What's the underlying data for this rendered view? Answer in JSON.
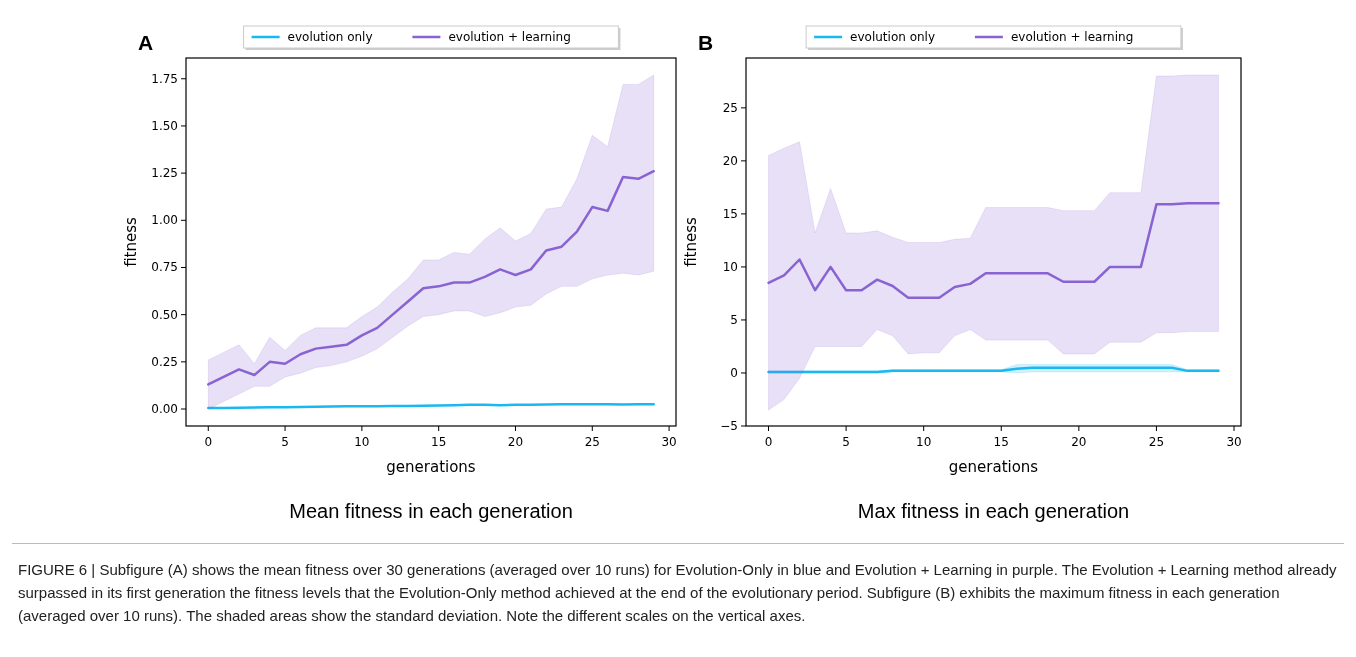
{
  "chart_data": [
    {
      "type": "line",
      "title": "Mean fitness in each generation",
      "xlabel": "generations",
      "ylabel": "fitness",
      "legend": "top",
      "annotations": [
        "A",
        "FIGURE 6 | Subfigure (A) shows the mean fitness over 30 generations (averaged over 10 runs) for Evolution-Only in blue and Evolution + Learning in purple. The Evolution + Learning method already surpassed in its first generation the fitness levels that the Evolution-Only method achieved at the end of the evolutionary period. Subfigure (B) exhibits the maximum fitness in each generation (averaged over 10 runs). The shaded areas show the standard deviation. Note the different scales on the vertical axes."
      ],
      "x": [
        0,
        1,
        2,
        3,
        4,
        5,
        6,
        7,
        8,
        9,
        10,
        11,
        12,
        13,
        14,
        15,
        16,
        17,
        18,
        19,
        20,
        21,
        22,
        23,
        24,
        25,
        26,
        27,
        28,
        29
      ],
      "xlim": [
        -1.45,
        30.45
      ],
      "xticks": [
        0,
        5,
        10,
        15,
        20,
        25,
        30
      ],
      "ylim": [
        -0.09,
        1.86
      ],
      "yticks": [
        {
          "value": 0,
          "label": "0.00"
        },
        {
          "value": 0.25,
          "label": "0.25"
        },
        {
          "value": 0.5,
          "label": "0.50"
        },
        {
          "value": 0.75,
          "label": "0.75"
        },
        {
          "value": 1,
          "label": "1.00"
        },
        {
          "value": 1.25,
          "label": "1.25"
        },
        {
          "value": 1.5,
          "label": "1.50"
        },
        {
          "value": 1.75,
          "label": "1.75"
        }
      ],
      "series": [
        {
          "name": "evolution only",
          "color": "#1ab8f0",
          "values": [
            0.005,
            0.006,
            0.007,
            0.008,
            0.009,
            0.01,
            0.011,
            0.012,
            0.013,
            0.014,
            0.015,
            0.015,
            0.016,
            0.016,
            0.017,
            0.018,
            0.02,
            0.022,
            0.022,
            0.02,
            0.022,
            0.023,
            0.024,
            0.025,
            0.025,
            0.025,
            0.025,
            0.024,
            0.025,
            0.025
          ]
        },
        {
          "name": "evolution + learning",
          "color": "#8a63d2",
          "values": [
            0.13,
            0.17,
            0.21,
            0.18,
            0.25,
            0.24,
            0.29,
            0.32,
            0.33,
            0.34,
            0.39,
            0.43,
            0.5,
            0.57,
            0.64,
            0.65,
            0.67,
            0.67,
            0.7,
            0.74,
            0.71,
            0.74,
            0.84,
            0.86,
            0.94,
            1.07,
            1.05,
            1.23,
            1.22,
            1.26
          ],
          "upper": [
            0.26,
            0.3,
            0.34,
            0.24,
            0.38,
            0.31,
            0.39,
            0.43,
            0.43,
            0.43,
            0.49,
            0.54,
            0.62,
            0.69,
            0.79,
            0.79,
            0.83,
            0.82,
            0.9,
            0.96,
            0.89,
            0.93,
            1.06,
            1.07,
            1.22,
            1.45,
            1.39,
            1.72,
            1.72,
            1.77
          ],
          "lower": [
            0.0,
            0.04,
            0.08,
            0.12,
            0.12,
            0.17,
            0.19,
            0.22,
            0.23,
            0.25,
            0.28,
            0.32,
            0.38,
            0.44,
            0.49,
            0.5,
            0.52,
            0.52,
            0.49,
            0.51,
            0.54,
            0.55,
            0.61,
            0.65,
            0.65,
            0.69,
            0.71,
            0.72,
            0.71,
            0.73
          ]
        }
      ]
    },
    {
      "type": "line",
      "title": "Max fitness in each generation",
      "xlabel": "generations",
      "ylabel": "fitness",
      "legend": "top",
      "annotations": [
        "B"
      ],
      "x": [
        0,
        1,
        2,
        3,
        4,
        5,
        6,
        7,
        8,
        9,
        10,
        11,
        12,
        13,
        14,
        15,
        16,
        17,
        18,
        19,
        20,
        21,
        22,
        23,
        24,
        25,
        26,
        27,
        28,
        29
      ],
      "xlim": [
        -1.45,
        30.45
      ],
      "xticks": [
        0,
        5,
        10,
        15,
        20,
        25,
        30
      ],
      "ylim": [
        -5,
        29.7
      ],
      "yticks": [
        {
          "value": -5,
          "label": "−5"
        },
        0,
        5,
        10,
        15,
        20,
        25
      ],
      "series": [
        {
          "name": "evolution only",
          "color": "#1ab8f0",
          "values": [
            0.1,
            0.1,
            0.1,
            0.1,
            0.1,
            0.1,
            0.1,
            0.1,
            0.2,
            0.2,
            0.2,
            0.2,
            0.2,
            0.2,
            0.2,
            0.2,
            0.4,
            0.5,
            0.5,
            0.5,
            0.5,
            0.5,
            0.5,
            0.5,
            0.5,
            0.5,
            0.5,
            0.2,
            0.2,
            0.2
          ],
          "upper": [
            0.2,
            0.2,
            0.2,
            0.2,
            0.2,
            0.2,
            0.2,
            0.2,
            0.3,
            0.3,
            0.3,
            0.3,
            0.3,
            0.3,
            0.3,
            0.3,
            0.8,
            0.8,
            0.8,
            0.8,
            0.8,
            0.8,
            0.8,
            0.8,
            0.8,
            0.8,
            0.8,
            0.3,
            0.3,
            0.3
          ],
          "lower": [
            0.0,
            0.0,
            0.0,
            0.0,
            0.0,
            0.0,
            0.0,
            0.0,
            0.1,
            0.1,
            0.1,
            0.1,
            0.1,
            0.1,
            0.1,
            0.1,
            0.0,
            0.1,
            0.1,
            0.1,
            0.1,
            0.1,
            0.1,
            0.1,
            0.1,
            0.1,
            0.1,
            0.1,
            0.1,
            0.1
          ]
        },
        {
          "name": "evolution + learning",
          "color": "#8a63d2",
          "values": [
            8.5,
            9.2,
            10.7,
            7.8,
            10,
            7.8,
            7.8,
            8.8,
            8.2,
            7.1,
            7.1,
            7.1,
            8.1,
            8.4,
            9.4,
            9.4,
            9.4,
            9.4,
            9.4,
            8.6,
            8.6,
            8.6,
            10,
            10,
            10,
            15.9,
            15.9,
            16,
            16,
            16
          ],
          "upper": [
            20.5,
            21.2,
            21.8,
            13.2,
            17.4,
            13.2,
            13.2,
            13.4,
            12.8,
            12.3,
            12.3,
            12.3,
            12.6,
            12.7,
            15.6,
            15.6,
            15.6,
            15.6,
            15.6,
            15.3,
            15.3,
            15.3,
            17,
            17,
            17,
            28,
            28,
            28.1,
            28.1,
            28.1
          ],
          "lower": [
            -3.5,
            -2.5,
            -0.5,
            2.5,
            2.5,
            2.5,
            2.5,
            4.1,
            3.5,
            1.8,
            1.9,
            1.9,
            3.5,
            4.1,
            3.1,
            3.1,
            3.1,
            3.1,
            3.1,
            1.8,
            1.8,
            1.8,
            2.9,
            2.9,
            2.9,
            3.8,
            3.8,
            3.9,
            3.9,
            3.9
          ]
        }
      ]
    }
  ]
}
